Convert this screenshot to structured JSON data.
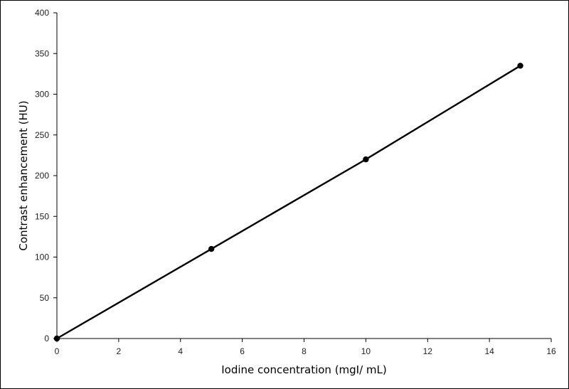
{
  "chart_data": {
    "type": "line",
    "title": "",
    "xlabel": "Iodine concentration (mgI/ mL)",
    "ylabel": "Contrast enhancement (HU)",
    "xlim": [
      0,
      16
    ],
    "ylim": [
      0,
      400
    ],
    "x_ticks": [
      "0",
      "2",
      "4",
      "6",
      "8",
      "10",
      "12",
      "14",
      "16"
    ],
    "y_ticks": [
      "0",
      "50",
      "100",
      "150",
      "200",
      "250",
      "300",
      "350",
      "400"
    ],
    "grid": false,
    "legend": "none",
    "series": [
      {
        "x": [
          0,
          5,
          10,
          15
        ],
        "y": [
          0,
          110,
          220,
          335
        ],
        "color": "#000000",
        "marker": "circle"
      }
    ]
  }
}
